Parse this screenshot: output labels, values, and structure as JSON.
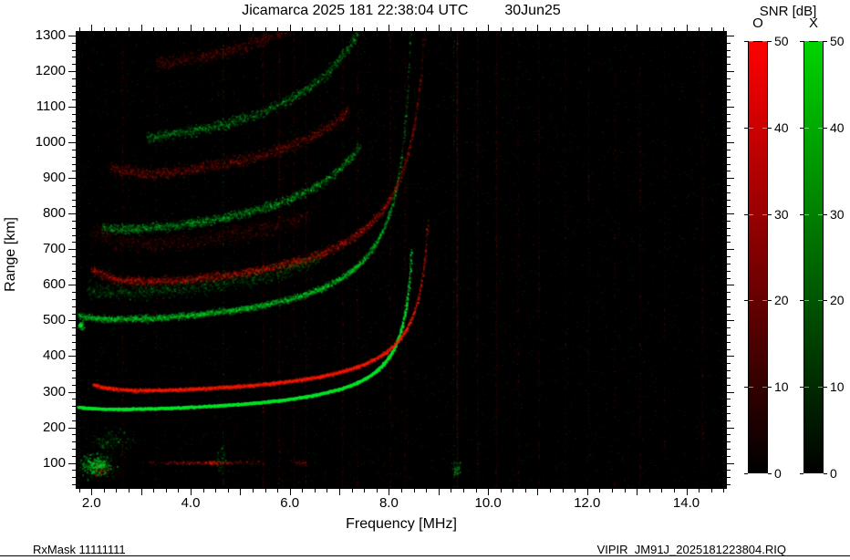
{
  "header": {
    "title_main": "Jicamarca 2025 181 22:38:04 UTC",
    "title_date": "30Jun25"
  },
  "footer": {
    "left": "RxMask 11111111",
    "right": "VIPIR  JM91J_2025181223804.RIQ"
  },
  "colorbar": {
    "title": "SNR [dB]",
    "min": 0,
    "max": 50,
    "ticks": [
      0,
      10,
      20,
      30,
      40,
      50
    ],
    "bars": [
      {
        "label": "O",
        "top_color": "#ff0000"
      },
      {
        "label": "X",
        "top_color": "#00d400"
      }
    ]
  },
  "chart_data": {
    "type": "heatmap",
    "title": "Jicamarca 2025 181 22:38:04 UTC  30Jun25",
    "xlabel": "Frequency [MHz]",
    "ylabel": "Range [km]",
    "xlim": [
      1.7,
      14.8
    ],
    "ylim": [
      30,
      1310
    ],
    "xticks": [
      2.0,
      4.0,
      6.0,
      8.0,
      10.0,
      12.0,
      14.0
    ],
    "yticks": [
      100,
      200,
      300,
      400,
      500,
      600,
      700,
      800,
      900,
      1000,
      1100,
      1200,
      1300
    ],
    "x_minor_step": 0.25,
    "y_minor_step": 20,
    "colors": {
      "o_trace": "#ff1c00",
      "x_trace": "#00e42a",
      "background": "#000000"
    },
    "modes": {
      "o": {
        "fc": 8.9,
        "h0": 201,
        "C": 854,
        "up": 45,
        "c": "r"
      },
      "x": {
        "fc": 8.55,
        "h0": 164,
        "C": 712,
        "up": 10,
        "c": "g"
      }
    },
    "hops": [
      {
        "mode": "x",
        "n": 1,
        "f": [
          1.72,
          8.55
        ],
        "sig": 3,
        "a": 0.85,
        "d": 1,
        "passes": 3,
        "maxr": 705
      },
      {
        "mode": "o",
        "n": 1,
        "f": [
          2.02,
          8.9
        ],
        "sig": 5,
        "a": 0.5,
        "d": 1,
        "passes": 2,
        "maxr": 785
      },
      {
        "mode": "x",
        "n": 2,
        "f": [
          1.72,
          8.55
        ],
        "sig": 9,
        "a": 0.4,
        "d": 0.85,
        "passes": 2,
        "maxr": 1330
      },
      {
        "mode": "o",
        "n": 2,
        "f": [
          2.0,
          8.9
        ],
        "sig": 13,
        "a": 0.3,
        "d": 0.75,
        "passes": 2,
        "maxr": 1330
      },
      {
        "mode": "x",
        "n": 2.3,
        "f": [
          1.9,
          6.6
        ],
        "sig": 22,
        "a": 0.2,
        "d": 0.5,
        "passes": 2,
        "maxr": 1330
      },
      {
        "mode": "o",
        "n": 2.35,
        "f": [
          2.0,
          6.4
        ],
        "sig": 26,
        "a": 0.15,
        "d": 0.45,
        "passes": 2,
        "maxr": 1330
      },
      {
        "mode": "x",
        "n": 3,
        "f": [
          2.2,
          7.4
        ],
        "sig": 13,
        "a": 0.33,
        "d": 0.65,
        "passes": 2,
        "maxr": 1330
      },
      {
        "mode": "o",
        "n": 3,
        "f": [
          2.35,
          7.2
        ],
        "sig": 17,
        "a": 0.24,
        "d": 0.55,
        "passes": 2,
        "maxr": 1330
      },
      {
        "mode": "x",
        "n": 4,
        "f": [
          3.1,
          7.7
        ],
        "sig": 15,
        "a": 0.3,
        "d": 0.55,
        "passes": 2,
        "maxr": 1330
      },
      {
        "mode": "o",
        "n": 4,
        "f": [
          3.3,
          7.9
        ],
        "sig": 19,
        "a": 0.2,
        "d": 0.5,
        "passes": 2,
        "maxr": 1330
      },
      {
        "mode": "x",
        "n": 5,
        "f": [
          4.5,
          7.3
        ],
        "sig": 18,
        "a": 0.2,
        "d": 0.4,
        "passes": 1,
        "maxr": 1330
      },
      {
        "mode": "o",
        "n": 5,
        "f": [
          4.7,
          7.5
        ],
        "sig": 22,
        "a": 0.15,
        "d": 0.4,
        "passes": 1,
        "maxr": 1330
      }
    ],
    "blobs": [
      {
        "f": 2.1,
        "r": 95,
        "fs": 0.3,
        "rs": 30,
        "n": 520,
        "c": "g",
        "a": 0.5
      },
      {
        "f": 2.4,
        "r": 165,
        "fs": 0.4,
        "rs": 30,
        "n": 150,
        "c": "g",
        "a": 0.3
      },
      {
        "f": 2.2,
        "r": 80,
        "fs": 0.25,
        "rs": 20,
        "n": 70,
        "c": "r",
        "a": 0.3
      },
      {
        "f": 4.3,
        "r": 102,
        "fs": 1.1,
        "rs": 5,
        "n": 260,
        "c": "r",
        "a": 0.4
      },
      {
        "f": 1.78,
        "r": 487,
        "fs": 0.05,
        "rs": 10,
        "n": 80,
        "c": "g",
        "a": 0.7
      },
      {
        "f": 9.35,
        "r": 85,
        "fs": 0.08,
        "rs": 22,
        "n": 50,
        "c": "g",
        "a": 0.5
      },
      {
        "f": 4.62,
        "r": 110,
        "fs": 0.1,
        "rs": 45,
        "n": 60,
        "c": "g",
        "a": 0.35
      },
      {
        "f": 6.2,
        "r": 100,
        "fs": 0.15,
        "rs": 10,
        "n": 40,
        "c": "r",
        "a": 0.4
      }
    ],
    "rfi_stripes": [
      {
        "f": 2.62,
        "c": "r",
        "a": 0.08
      },
      {
        "f": 3.3,
        "c": "r",
        "a": 0.06
      },
      {
        "f": 4.65,
        "c": "g",
        "a": 0.07
      },
      {
        "f": 5.45,
        "c": "r",
        "a": 0.1
      },
      {
        "f": 5.78,
        "c": "r",
        "a": 0.12
      },
      {
        "f": 6.08,
        "c": "r",
        "a": 0.09
      },
      {
        "f": 6.32,
        "c": "r",
        "a": 0.1
      },
      {
        "f": 7.06,
        "c": "r",
        "a": 0.1
      },
      {
        "f": 7.36,
        "c": "r",
        "a": 0.09
      },
      {
        "f": 8.02,
        "c": "r",
        "a": 0.1
      },
      {
        "f": 8.32,
        "c": "r",
        "a": 0.08
      },
      {
        "f": 9.37,
        "c": "r",
        "a": 0.26
      },
      {
        "f": 9.78,
        "c": "r",
        "a": 0.1
      },
      {
        "f": 10.16,
        "c": "r",
        "a": 0.12
      },
      {
        "f": 10.6,
        "c": "r",
        "a": 0.07
      },
      {
        "f": 11.02,
        "c": "r",
        "a": 0.09
      },
      {
        "f": 11.55,
        "c": "r",
        "a": 0.06
      },
      {
        "f": 12.02,
        "c": "r",
        "a": 0.07
      },
      {
        "f": 12.55,
        "c": "r",
        "a": 0.05
      },
      {
        "f": 13.06,
        "c": "r",
        "a": 0.09
      },
      {
        "f": 13.55,
        "c": "r",
        "a": 0.05
      },
      {
        "f": 14.32,
        "c": "r",
        "a": 0.07
      },
      {
        "f": 9.3,
        "c": "g",
        "a": 0.05
      }
    ],
    "noise": {
      "uniform": 6500,
      "haze": 2600
    }
  }
}
